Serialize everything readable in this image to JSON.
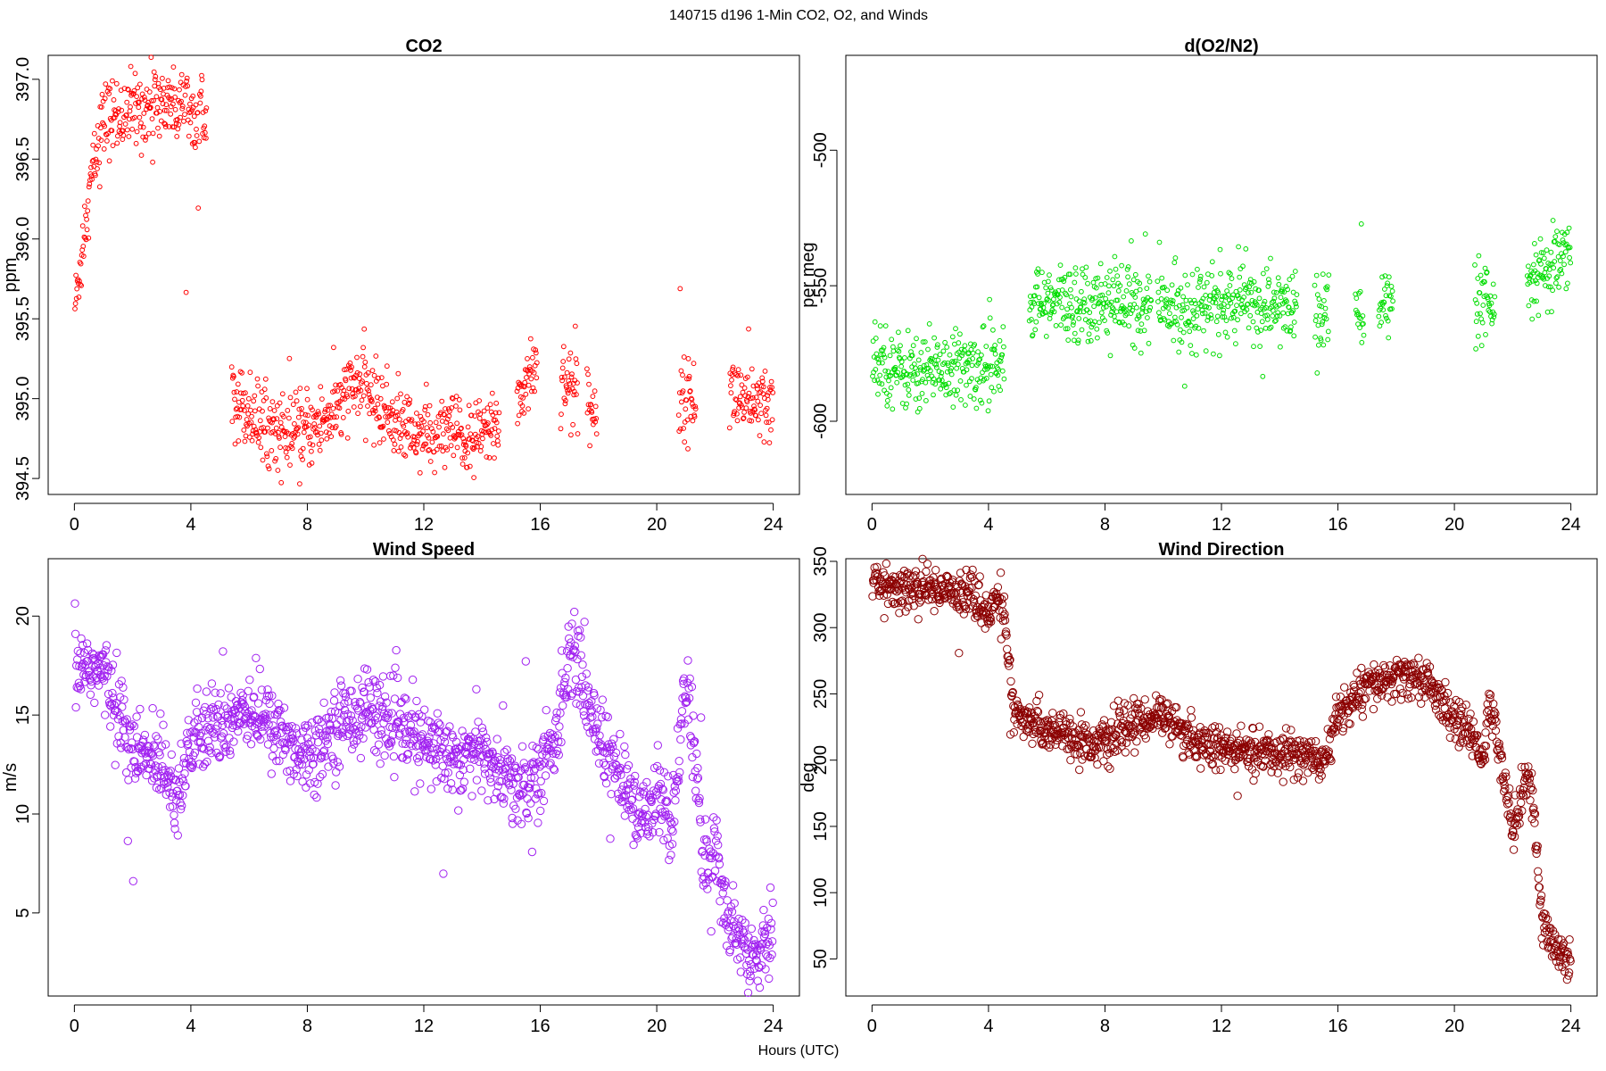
{
  "figure": {
    "super_title": "140715   d196   1-Min CO2, O2, and Winds",
    "x_axis_label": "Hours (UTC)"
  },
  "chart_data": [
    {
      "id": "co2",
      "type": "scatter",
      "title": "CO2",
      "xlabel": "",
      "ylabel": "ppm",
      "xlim": [
        -0.9,
        24.9
      ],
      "ylim": [
        394.4,
        397.15
      ],
      "xticks": [
        0,
        4,
        8,
        12,
        16,
        20,
        24
      ],
      "yticks": [
        394.5,
        395.0,
        395.5,
        396.0,
        396.5,
        397.0
      ],
      "ytick_labels": [
        "394.5",
        "395.0",
        "395.5",
        "396.0",
        "396.5",
        "397.0"
      ],
      "color": "#ff0000",
      "trend": [
        [
          0.05,
          395.6
        ],
        [
          0.3,
          396.0
        ],
        [
          0.6,
          396.4
        ],
        [
          1.0,
          396.75
        ],
        [
          2.0,
          396.8
        ],
        [
          3.0,
          396.85
        ],
        [
          4.5,
          396.85
        ],
        [
          5.5,
          395.0
        ],
        [
          6.5,
          394.85
        ],
        [
          7.5,
          394.75
        ],
        [
          8.5,
          394.85
        ],
        [
          9.3,
          395.0
        ],
        [
          9.8,
          395.1
        ],
        [
          10.5,
          394.95
        ],
        [
          11.5,
          394.8
        ],
        [
          12.5,
          394.75
        ],
        [
          13.0,
          394.8
        ],
        [
          13.5,
          394.7
        ],
        [
          14.5,
          394.85
        ],
        [
          15.3,
          395.0
        ],
        [
          15.7,
          395.2
        ],
        [
          16.8,
          395.15
        ],
        [
          17.2,
          395.0
        ],
        [
          17.9,
          394.95
        ],
        [
          20.8,
          395.0
        ],
        [
          21.3,
          395.0
        ],
        [
          22.6,
          395.05
        ],
        [
          23.3,
          394.95
        ],
        [
          23.9,
          394.95
        ]
      ],
      "gaps": [
        [
          4.55,
          5.4
        ],
        [
          14.6,
          15.2
        ],
        [
          15.9,
          16.7
        ],
        [
          17.3,
          17.6
        ],
        [
          17.95,
          20.75
        ],
        [
          21.35,
          22.5
        ]
      ],
      "spread": 0.12
    },
    {
      "id": "o2",
      "type": "scatter",
      "title": "d(O2/N2)",
      "xlabel": "",
      "ylabel": "per meg",
      "xlim": [
        -0.9,
        24.9
      ],
      "ylim": [
        -627,
        -465
      ],
      "xticks": [
        0,
        4,
        8,
        12,
        16,
        20,
        24
      ],
      "yticks": [
        -600,
        -550,
        -500
      ],
      "ytick_labels": [
        "-600",
        "-550",
        "-500"
      ],
      "color": "#00dd00",
      "trend": [
        [
          0.0,
          -575
        ],
        [
          1.0,
          -582
        ],
        [
          2.0,
          -580
        ],
        [
          3.0,
          -581
        ],
        [
          4.0,
          -580
        ],
        [
          4.5,
          -573
        ],
        [
          5.5,
          -557
        ],
        [
          7.0,
          -556
        ],
        [
          8.0,
          -555
        ],
        [
          9.5,
          -557
        ],
        [
          10.5,
          -558
        ],
        [
          12.0,
          -557
        ],
        [
          13.0,
          -556
        ],
        [
          14.0,
          -558
        ],
        [
          15.5,
          -559
        ],
        [
          16.7,
          -560
        ],
        [
          17.6,
          -557
        ],
        [
          21.0,
          -558
        ],
        [
          21.3,
          -560
        ],
        [
          22.6,
          -550
        ],
        [
          23.3,
          -545
        ],
        [
          23.9,
          -540
        ]
      ],
      "gaps": [
        [
          4.55,
          5.4
        ],
        [
          9.6,
          9.8
        ],
        [
          14.6,
          15.2
        ],
        [
          15.7,
          16.6
        ],
        [
          16.9,
          17.4
        ],
        [
          17.9,
          20.7
        ],
        [
          21.4,
          22.5
        ]
      ],
      "spread": 7
    },
    {
      "id": "wspd",
      "type": "scatter",
      "title": "Wind Speed",
      "xlabel": "",
      "ylabel": "m/s",
      "xlim": [
        -0.9,
        24.9
      ],
      "ylim": [
        0.8,
        22.9
      ],
      "xticks": [
        0,
        4,
        8,
        12,
        16,
        20,
        24
      ],
      "yticks": [
        5,
        10,
        15,
        20
      ],
      "ytick_labels": [
        "5",
        "10",
        "15",
        "20"
      ],
      "color": "#a020f0",
      "trend": [
        [
          0.0,
          17.5
        ],
        [
          0.5,
          17.5
        ],
        [
          1.0,
          17.0
        ],
        [
          1.5,
          15.5
        ],
        [
          2.0,
          13.0
        ],
        [
          2.5,
          12.8
        ],
        [
          3.0,
          12.9
        ],
        [
          3.5,
          11.0
        ],
        [
          4.0,
          13.5
        ],
        [
          5.0,
          14.5
        ],
        [
          6.0,
          15.5
        ],
        [
          7.0,
          14.0
        ],
        [
          8.0,
          13.0
        ],
        [
          9.0,
          14.5
        ],
        [
          10.0,
          15.5
        ],
        [
          11.0,
          14.5
        ],
        [
          12.0,
          13.5
        ],
        [
          13.0,
          13.0
        ],
        [
          14.0,
          13.0
        ],
        [
          15.0,
          11.5
        ],
        [
          16.0,
          12.0
        ],
        [
          16.5,
          13.5
        ],
        [
          17.0,
          18.5
        ],
        [
          17.5,
          16.5
        ],
        [
          18.0,
          14.0
        ],
        [
          19.0,
          11.0
        ],
        [
          19.5,
          9.5
        ],
        [
          20.0,
          11.5
        ],
        [
          20.5,
          9.0
        ],
        [
          21.0,
          17.0
        ],
        [
          21.3,
          13.0
        ],
        [
          21.6,
          7.0
        ],
        [
          22.0,
          8.5
        ],
        [
          22.5,
          4.0
        ],
        [
          23.0,
          3.5
        ],
        [
          23.5,
          3.0
        ],
        [
          24.0,
          4.5
        ]
      ],
      "gaps": [],
      "spread": 1.0
    },
    {
      "id": "wdir",
      "type": "scatter",
      "title": "Wind Direction",
      "xlabel": "",
      "ylabel": "deg",
      "xlim": [
        -0.9,
        24.9
      ],
      "ylim": [
        22,
        352
      ],
      "xticks": [
        0,
        4,
        8,
        12,
        16,
        20,
        24
      ],
      "yticks": [
        50,
        100,
        150,
        200,
        250,
        300,
        350
      ],
      "ytick_labels": [
        "50",
        "100",
        "150",
        "200",
        "250",
        "300",
        "350"
      ],
      "color": "#8b0000",
      "trend": [
        [
          0.0,
          335
        ],
        [
          1.0,
          328
        ],
        [
          2.0,
          330
        ],
        [
          3.0,
          328
        ],
        [
          3.5,
          322
        ],
        [
          4.0,
          310
        ],
        [
          4.3,
          325
        ],
        [
          4.6,
          300
        ],
        [
          4.9,
          230
        ],
        [
          6.0,
          225
        ],
        [
          7.0,
          215
        ],
        [
          8.0,
          212
        ],
        [
          9.0,
          228
        ],
        [
          10.0,
          235
        ],
        [
          11.0,
          215
        ],
        [
          12.0,
          208
        ],
        [
          13.0,
          205
        ],
        [
          14.0,
          205
        ],
        [
          15.0,
          205
        ],
        [
          15.5,
          195
        ],
        [
          16.0,
          235
        ],
        [
          17.0,
          255
        ],
        [
          18.0,
          262
        ],
        [
          19.0,
          262
        ],
        [
          19.5,
          245
        ],
        [
          20.0,
          230
        ],
        [
          20.5,
          220
        ],
        [
          21.0,
          205
        ],
        [
          21.2,
          240
        ],
        [
          21.5,
          215
        ],
        [
          22.0,
          148
        ],
        [
          22.5,
          190
        ],
        [
          22.7,
          170
        ],
        [
          23.0,
          80
        ],
        [
          23.5,
          55
        ],
        [
          24.0,
          50
        ]
      ],
      "gaps": [],
      "spread": 8
    }
  ]
}
